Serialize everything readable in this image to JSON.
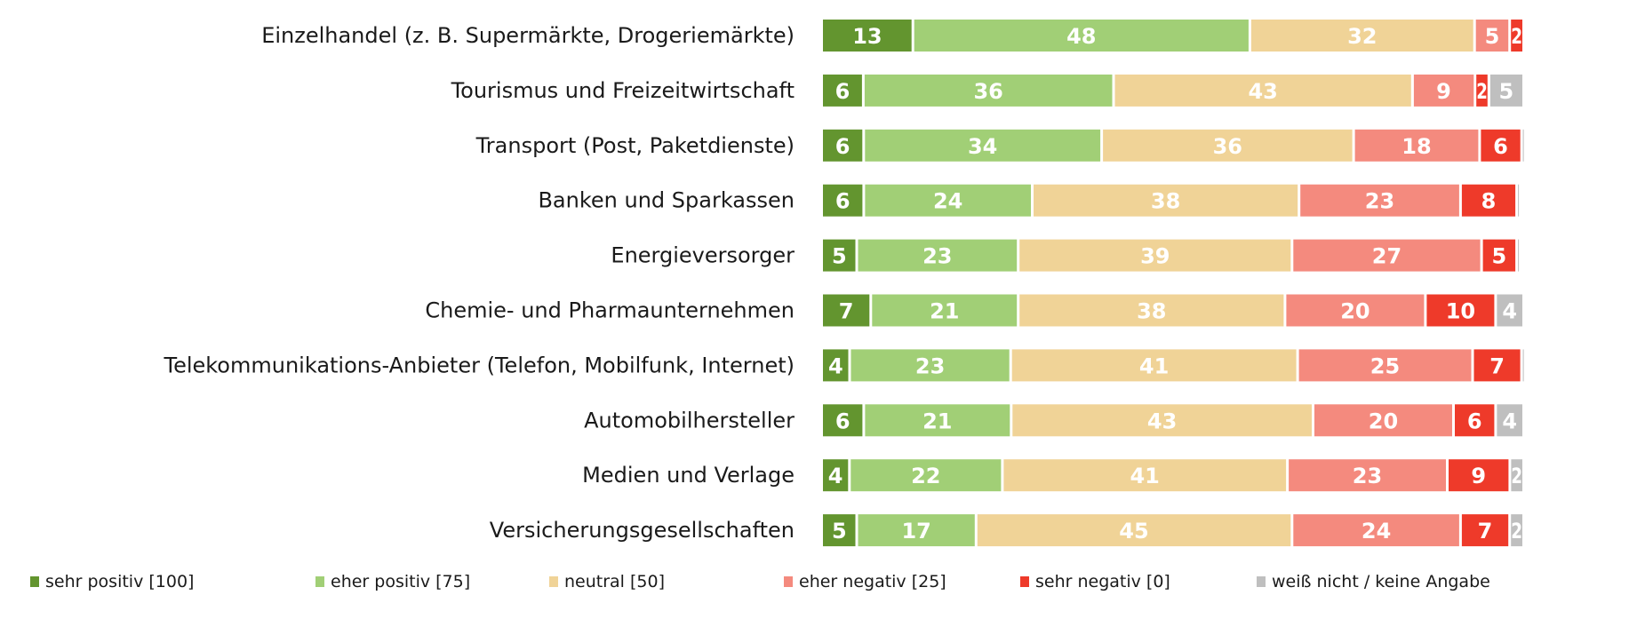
{
  "chart_data": {
    "type": "bar",
    "orientation": "horizontal",
    "stacked": true,
    "title": "",
    "xlabel": "",
    "ylabel": "",
    "xlim": [
      0,
      100
    ],
    "grid": false,
    "legend_position": "bottom",
    "categories": [
      "Einzelhandel (z. B. Supermärkte, Drogeriemärkte)",
      "Tourismus und Freizeitwirtschaft",
      "Transport (Post, Paketdienste)",
      "Banken und Sparkassen",
      "Energieversorger",
      "Chemie- und Pharmaunternehmen",
      "Telekommunikations-Anbieter (Telefon, Mobilfunk, Internet)",
      "Automobilhersteller",
      "Medien und Verlage",
      "Versicherungsgesellschaften"
    ],
    "series": [
      {
        "name": "sehr positiv [100]",
        "color": "#63952f",
        "values": [
          13,
          6,
          6,
          6,
          5,
          7,
          4,
          6,
          4,
          5
        ]
      },
      {
        "name": "eher positiv [75]",
        "color": "#a1cf76",
        "values": [
          48,
          36,
          34,
          24,
          23,
          21,
          23,
          21,
          22,
          17
        ]
      },
      {
        "name": "neutral [50]",
        "color": "#f0d397",
        "values": [
          32,
          43,
          36,
          38,
          39,
          38,
          41,
          43,
          41,
          45
        ]
      },
      {
        "name": "eher negativ [25]",
        "color": "#f48a7e",
        "values": [
          5,
          9,
          18,
          23,
          27,
          20,
          25,
          20,
          23,
          24
        ]
      },
      {
        "name": "sehr negativ [0]",
        "color": "#ee3a2a",
        "values": [
          2,
          2,
          6,
          8,
          5,
          10,
          7,
          6,
          9,
          7
        ]
      },
      {
        "name": "weiß nicht / keine Angabe",
        "color": "#bfbfbf",
        "values": [
          0,
          5,
          0.3,
          0.3,
          0.3,
          4,
          0.3,
          4,
          2,
          2
        ]
      }
    ],
    "labels": [
      [
        "13",
        "48",
        "32",
        "5",
        "2",
        ""
      ],
      [
        "6",
        "36",
        "43",
        "9",
        "2",
        "5"
      ],
      [
        "6",
        "34",
        "36",
        "18",
        "6",
        ""
      ],
      [
        "6",
        "24",
        "38",
        "23",
        "8",
        ""
      ],
      [
        "5",
        "23",
        "39",
        "27",
        "5",
        ""
      ],
      [
        "7",
        "21",
        "38",
        "20",
        "10",
        "4"
      ],
      [
        "4",
        "23",
        "41",
        "25",
        "7",
        ""
      ],
      [
        "6",
        "21",
        "43",
        "20",
        "6",
        "4"
      ],
      [
        "4",
        "22",
        "41",
        "23",
        "9",
        "2"
      ],
      [
        "5",
        "17",
        "45",
        "24",
        "7",
        "2"
      ]
    ]
  }
}
